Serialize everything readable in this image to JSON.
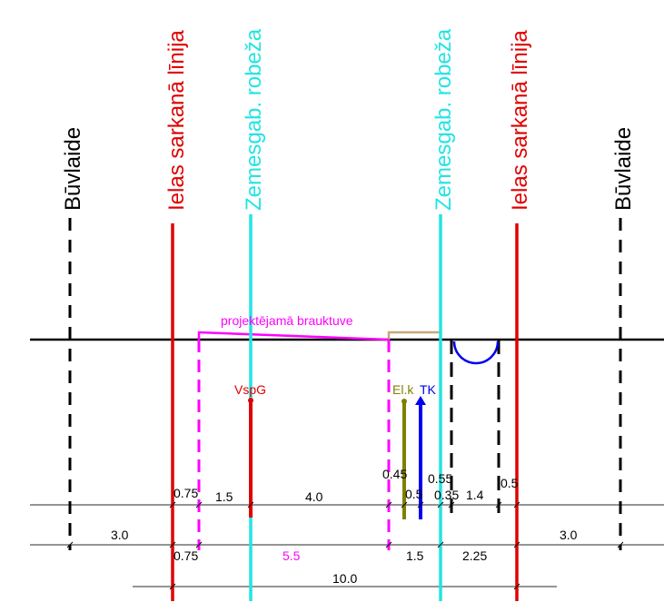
{
  "colors": {
    "red": "#e00000",
    "cyan": "#22e4e4",
    "magenta": "#ff00ff",
    "black": "#000000",
    "olive": "#808000",
    "blue": "#0000ee",
    "tan": "#c8a878",
    "gray": "#555555"
  },
  "vertical_labels": {
    "buvlaide_left": "Būvlaide",
    "red_left": "Ielas sarkanā līnija",
    "cyan_left": "Zemesgab. robeža",
    "cyan_right": "Zemesgab. robeža",
    "red_right": "Ielas sarkanā līnija",
    "buvlaide_right": "Būvlaide"
  },
  "labels": {
    "brauktuve": "projektējamā brauktuve",
    "vspg": "VspG",
    "elk": "El.k",
    "tk": "TK"
  },
  "dims_row1": {
    "d075": "0.75",
    "d15": "1.5",
    "d40": "4.0",
    "d045": "0.45",
    "d05a": "0.5",
    "d055": "0.55",
    "d035": "0.35",
    "d14": "1.4",
    "d05b": "0.5"
  },
  "dims_row2": {
    "d30a": "3.0",
    "d075": "0.75",
    "d55": "5.5",
    "d15": "1.5",
    "d225": "2.25",
    "d30b": "3.0"
  },
  "dims_row3": {
    "d100": "10.0"
  }
}
